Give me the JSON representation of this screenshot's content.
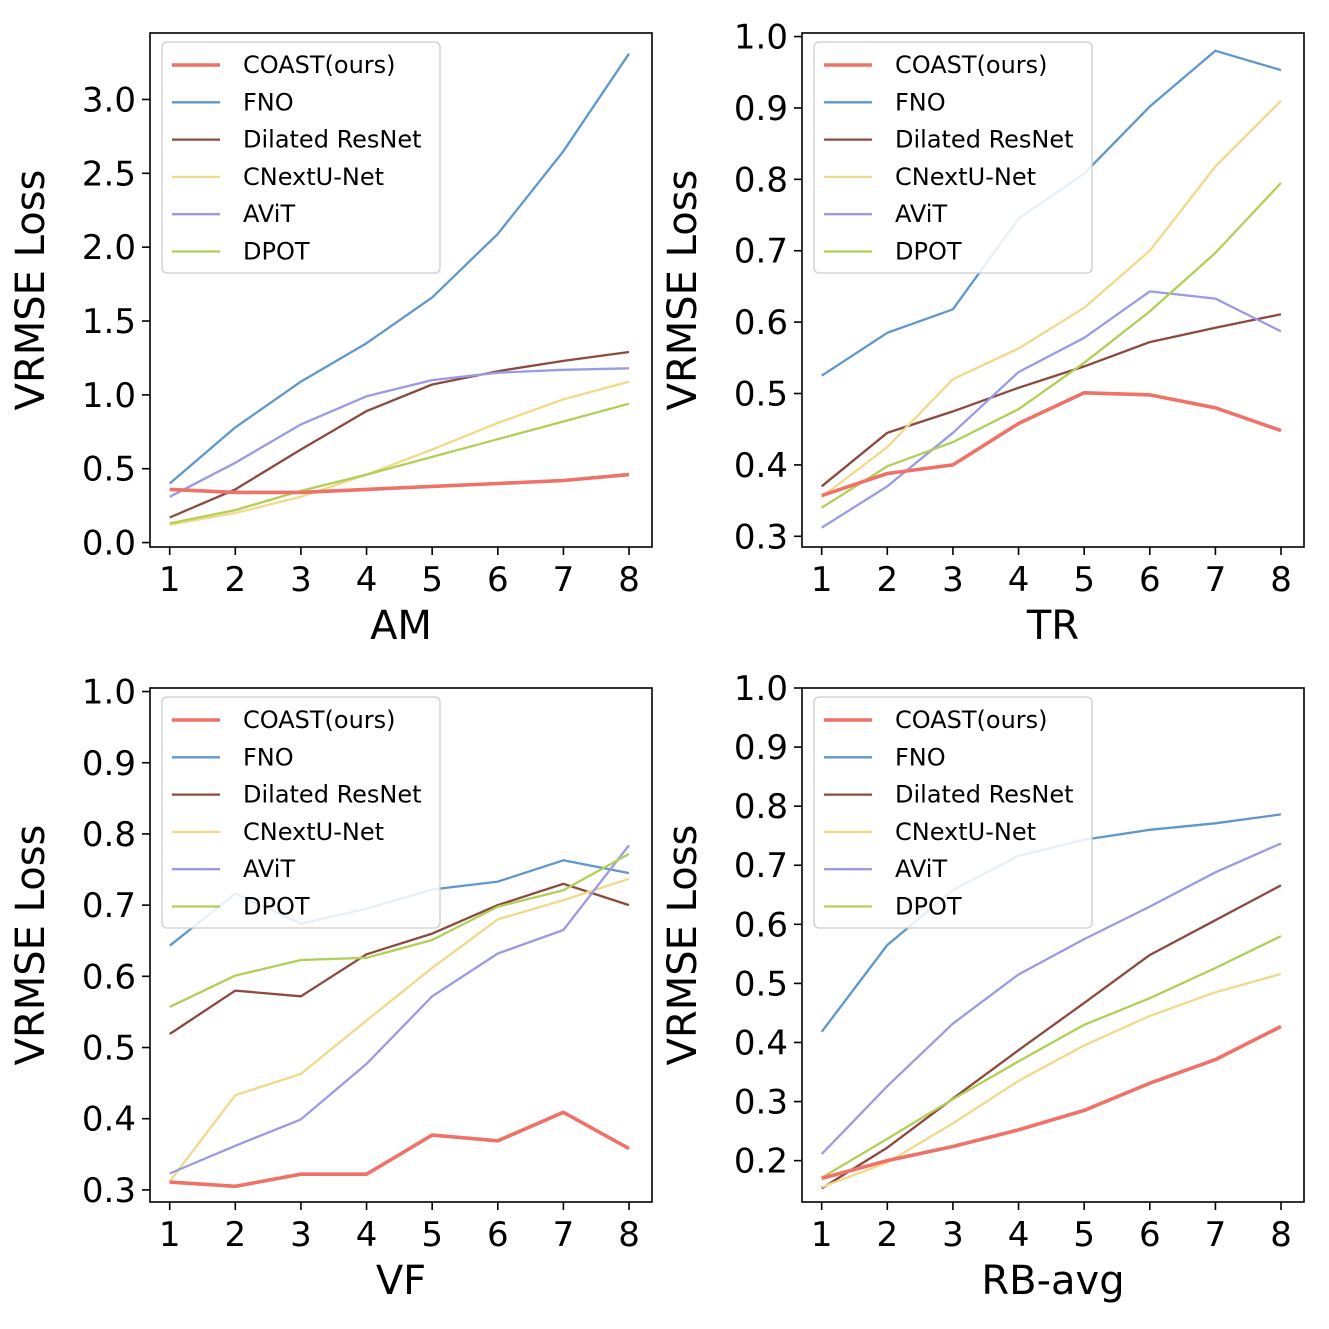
{
  "legend_labels": [
    "COAST(ours)",
    "FNO",
    "Dilated ResNet",
    "CNextU-Net",
    "AViT",
    "DPOT"
  ],
  "colors": {
    "COAST(ours)": "#ee7268",
    "FNO": "#5f97cb",
    "Dilated ResNet": "#8c4a3e",
    "CNextU-Net": "#f2d98a",
    "AViT": "#9b9ae2",
    "DPOT": "#b1cf56"
  },
  "chart_data": [
    {
      "type": "line",
      "title": "",
      "xlabel": "AM",
      "ylabel": "VRMSE Loss",
      "x": [
        1,
        2,
        3,
        4,
        5,
        6,
        7,
        8
      ],
      "xlim": [
        0.7,
        8.35
      ],
      "ylim": [
        -0.03,
        3.45
      ],
      "yticks": [
        0.0,
        0.5,
        1.0,
        1.5,
        2.0,
        2.5,
        3.0
      ],
      "ytick_labels": [
        "0.0",
        "0.5",
        "1.0",
        "1.5",
        "2.0",
        "2.5",
        "3.0"
      ],
      "legend": "top-left",
      "series": [
        {
          "name": "FNO",
          "values": [
            0.4,
            0.78,
            1.09,
            1.35,
            1.66,
            2.09,
            2.65,
            3.31
          ]
        },
        {
          "name": "Dilated ResNet",
          "values": [
            0.17,
            0.36,
            0.63,
            0.89,
            1.07,
            1.16,
            1.23,
            1.29
          ]
        },
        {
          "name": "CNextU-Net",
          "values": [
            0.12,
            0.2,
            0.31,
            0.46,
            0.63,
            0.81,
            0.97,
            1.09
          ]
        },
        {
          "name": "AViT",
          "values": [
            0.31,
            0.54,
            0.8,
            0.99,
            1.1,
            1.15,
            1.17,
            1.18
          ]
        },
        {
          "name": "DPOT",
          "values": [
            0.13,
            0.22,
            0.35,
            0.46,
            0.58,
            0.7,
            0.82,
            0.94
          ]
        },
        {
          "name": "COAST(ours)",
          "values": [
            0.36,
            0.34,
            0.34,
            0.36,
            0.38,
            0.4,
            0.42,
            0.46
          ]
        }
      ]
    },
    {
      "type": "line",
      "title": "",
      "xlabel": "TR",
      "ylabel": "VRMSE Loss",
      "x": [
        1,
        2,
        3,
        4,
        5,
        6,
        7,
        8
      ],
      "xlim": [
        0.7,
        8.35
      ],
      "ylim": [
        0.285,
        1.005
      ],
      "yticks": [
        0.3,
        0.4,
        0.5,
        0.6,
        0.7,
        0.8,
        0.9,
        1.0
      ],
      "ytick_labels": [
        "0.3",
        "0.4",
        "0.5",
        "0.6",
        "0.7",
        "0.8",
        "0.9",
        "1.0"
      ],
      "legend": "top-left",
      "series": [
        {
          "name": "FNO",
          "values": [
            0.525,
            0.585,
            0.618,
            0.745,
            0.808,
            0.902,
            0.98,
            0.953
          ]
        },
        {
          "name": "Dilated ResNet",
          "values": [
            0.37,
            0.445,
            0.475,
            0.508,
            0.538,
            0.572,
            0.592,
            0.611
          ]
        },
        {
          "name": "CNextU-Net",
          "values": [
            0.355,
            0.425,
            0.52,
            0.563,
            0.62,
            0.7,
            0.818,
            0.91
          ]
        },
        {
          "name": "AViT",
          "values": [
            0.312,
            0.37,
            0.445,
            0.53,
            0.578,
            0.643,
            0.633,
            0.587
          ]
        },
        {
          "name": "DPOT",
          "values": [
            0.34,
            0.398,
            0.432,
            0.478,
            0.543,
            0.615,
            0.697,
            0.795
          ]
        },
        {
          "name": "COAST(ours)",
          "values": [
            0.357,
            0.388,
            0.4,
            0.458,
            0.501,
            0.498,
            0.48,
            0.448
          ]
        }
      ]
    },
    {
      "type": "line",
      "title": "",
      "xlabel": "VF",
      "ylabel": "VRMSE Loss",
      "x": [
        1,
        2,
        3,
        4,
        5,
        6,
        7,
        8
      ],
      "xlim": [
        0.7,
        8.35
      ],
      "ylim": [
        0.283,
        1.005
      ],
      "yticks": [
        0.3,
        0.4,
        0.5,
        0.6,
        0.7,
        0.8,
        0.9,
        1.0
      ],
      "ytick_labels": [
        "0.3",
        "0.4",
        "0.5",
        "0.6",
        "0.7",
        "0.8",
        "0.9",
        "1.0"
      ],
      "legend": "top-left",
      "series": [
        {
          "name": "FNO",
          "values": [
            0.643,
            0.716,
            0.674,
            0.695,
            0.722,
            0.733,
            0.763,
            0.745
          ]
        },
        {
          "name": "Dilated ResNet",
          "values": [
            0.519,
            0.58,
            0.572,
            0.631,
            0.66,
            0.7,
            0.73,
            0.7
          ]
        },
        {
          "name": "CNextU-Net",
          "values": [
            0.312,
            0.433,
            0.463,
            0.538,
            0.612,
            0.68,
            0.707,
            0.737
          ]
        },
        {
          "name": "AViT",
          "values": [
            0.323,
            0.362,
            0.399,
            0.477,
            0.572,
            0.632,
            0.665,
            0.784
          ]
        },
        {
          "name": "DPOT",
          "values": [
            0.557,
            0.601,
            0.623,
            0.626,
            0.651,
            0.698,
            0.721,
            0.772
          ]
        },
        {
          "name": "COAST(ours)",
          "values": [
            0.311,
            0.305,
            0.322,
            0.322,
            0.377,
            0.369,
            0.409,
            0.358
          ]
        }
      ]
    },
    {
      "type": "line",
      "title": "",
      "xlabel": "RB-avg",
      "ylabel": "VRMSE Loss",
      "x": [
        1,
        2,
        3,
        4,
        5,
        6,
        7,
        8
      ],
      "xlim": [
        0.7,
        8.35
      ],
      "ylim": [
        0.13,
        1.0
      ],
      "yticks": [
        0.2,
        0.3,
        0.4,
        0.5,
        0.6,
        0.7,
        0.8,
        0.9,
        1.0
      ],
      "ytick_labels": [
        "0.2",
        "0.3",
        "0.4",
        "0.5",
        "0.6",
        "0.7",
        "0.8",
        "0.9",
        "1.0"
      ],
      "legend": "top-left",
      "series": [
        {
          "name": "FNO",
          "values": [
            0.418,
            0.565,
            0.658,
            0.716,
            0.743,
            0.76,
            0.771,
            0.786
          ]
        },
        {
          "name": "Dilated ResNet",
          "values": [
            0.153,
            0.222,
            0.305,
            0.387,
            0.467,
            0.548,
            0.607,
            0.666
          ]
        },
        {
          "name": "CNextU-Net",
          "values": [
            0.155,
            0.197,
            0.263,
            0.335,
            0.395,
            0.445,
            0.485,
            0.516
          ]
        },
        {
          "name": "AViT",
          "values": [
            0.211,
            0.326,
            0.432,
            0.515,
            0.575,
            0.63,
            0.688,
            0.737
          ]
        },
        {
          "name": "DPOT",
          "values": [
            0.171,
            0.237,
            0.304,
            0.368,
            0.43,
            0.475,
            0.526,
            0.58
          ]
        },
        {
          "name": "COAST(ours)",
          "values": [
            0.17,
            0.2,
            0.224,
            0.252,
            0.285,
            0.331,
            0.371,
            0.427
          ]
        }
      ]
    }
  ]
}
